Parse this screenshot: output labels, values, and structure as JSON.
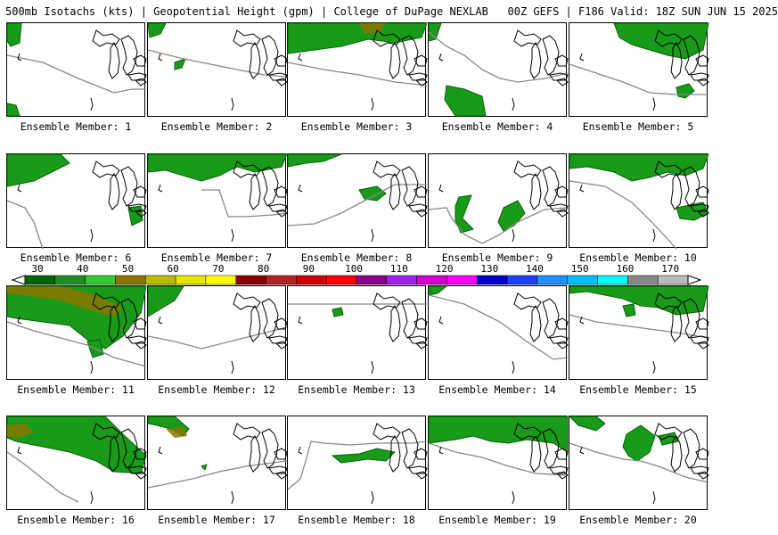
{
  "header": {
    "title": "500mb Isotachs (kts) | Geopotential Height (gpm) | College of DuPage NEXLAB   00Z GEFS | F186 Valid: 18Z SUN JUN 15 2025"
  },
  "colorbar": {
    "labels": [
      "30",
      "40",
      "50",
      "60",
      "70",
      "80",
      "90",
      "100",
      "110",
      "120",
      "130",
      "140",
      "150",
      "160",
      "170"
    ],
    "colors": [
      "#006400",
      "#228B22",
      "#32CD32",
      "#8B7500",
      "#BDB800",
      "#E5E500",
      "#FFFF00",
      "#8B0000",
      "#B22222",
      "#D20000",
      "#FF0000",
      "#8B008B",
      "#A020F0",
      "#D000D0",
      "#FF00FF",
      "#0000CD",
      "#1E40FF",
      "#1E90FF",
      "#00BFFF",
      "#00FFFF",
      "#888888",
      "#BBBBBB"
    ]
  },
  "panels": [
    {
      "label": "Ensemble Member: 1"
    },
    {
      "label": "Ensemble Member: 2"
    },
    {
      "label": "Ensemble Member: 3"
    },
    {
      "label": "Ensemble Member: 4"
    },
    {
      "label": "Ensemble Member: 5"
    },
    {
      "label": "Ensemble Member: 6"
    },
    {
      "label": "Ensemble Member: 7"
    },
    {
      "label": "Ensemble Member: 8"
    },
    {
      "label": "Ensemble Member: 9"
    },
    {
      "label": "Ensemble Member: 10"
    },
    {
      "label": "Ensemble Member: 11"
    },
    {
      "label": "Ensemble Member: 12"
    },
    {
      "label": "Ensemble Member: 13"
    },
    {
      "label": "Ensemble Member: 14"
    },
    {
      "label": "Ensemble Member: 15"
    },
    {
      "label": "Ensemble Member: 16"
    },
    {
      "label": "Ensemble Member: 17"
    },
    {
      "label": "Ensemble Member: 18"
    },
    {
      "label": "Ensemble Member: 19"
    },
    {
      "label": "Ensemble Member: 20"
    }
  ]
}
